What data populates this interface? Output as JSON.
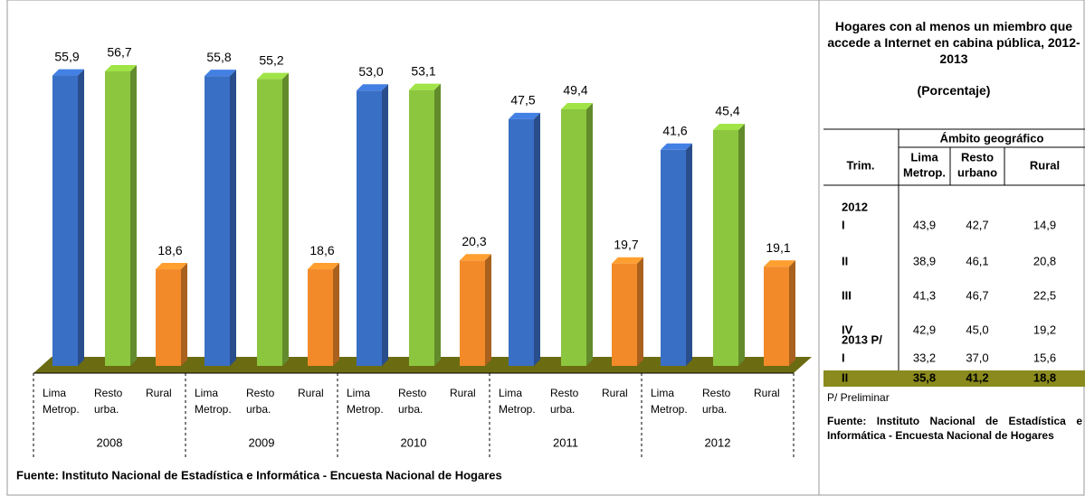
{
  "chart_data": {
    "type": "bar",
    "categories": [
      "2008",
      "2009",
      "2010",
      "2011",
      "2012"
    ],
    "series": [
      {
        "name": "Lima Metrop.",
        "color": "#3a6fc6",
        "values": [
          55.9,
          55.8,
          53.0,
          47.5,
          41.6
        ],
        "value_labels": [
          "55,9",
          "55,8",
          "53,0",
          "47,5",
          "41,6"
        ]
      },
      {
        "name": "Resto urba.",
        "color": "#8cc63f",
        "values": [
          56.7,
          55.2,
          53.1,
          49.4,
          45.4
        ],
        "value_labels": [
          "56,7",
          "55,2",
          "53,1",
          "49,4",
          "45,4"
        ]
      },
      {
        "name": "Rural",
        "color": "#f28a2a",
        "values": [
          18.6,
          18.6,
          20.3,
          19.7,
          19.1
        ],
        "value_labels": [
          "18,6",
          "18,6",
          "20,3",
          "19,7",
          "19,1"
        ]
      }
    ],
    "source": "Fuente: Instituto Nacional de Estadística e Informática - Encuesta Nacional de Hogares"
  },
  "table": {
    "title": "Hogares con al menos un miembro que accede a Internet en cabina pública, 2012-2013",
    "subtitle": "(Porcentaje)",
    "row_header": "Trim.",
    "group_header": "Ámbito geográfico",
    "columns": [
      "Lima Metrop.",
      "Resto urbano",
      "Rural"
    ],
    "sections": [
      {
        "year": "2012",
        "rows": [
          {
            "trim": "I",
            "values": [
              "43,9",
              "42,7",
              "14,9"
            ]
          },
          {
            "trim": "II",
            "values": [
              "38,9",
              "46,1",
              "20,8"
            ]
          },
          {
            "trim": "III",
            "values": [
              "41,3",
              "46,7",
              "22,5"
            ]
          },
          {
            "trim": "IV",
            "values": [
              "42,9",
              "45,0",
              "19,2"
            ]
          }
        ]
      },
      {
        "year": "2013 P/",
        "rows": [
          {
            "trim": "I",
            "values": [
              "33,2",
              "37,0",
              "15,6"
            ]
          },
          {
            "trim": "II",
            "values": [
              "35,8",
              "41,2",
              "18,8"
            ],
            "highlight": true,
            "highlight_color": "#8a8a1e"
          }
        ]
      }
    ],
    "note": "P/ Preliminar",
    "source": "Fuente: Instituto Nacional de Estadística e Informática - Encuesta Nacional de Hogares"
  }
}
